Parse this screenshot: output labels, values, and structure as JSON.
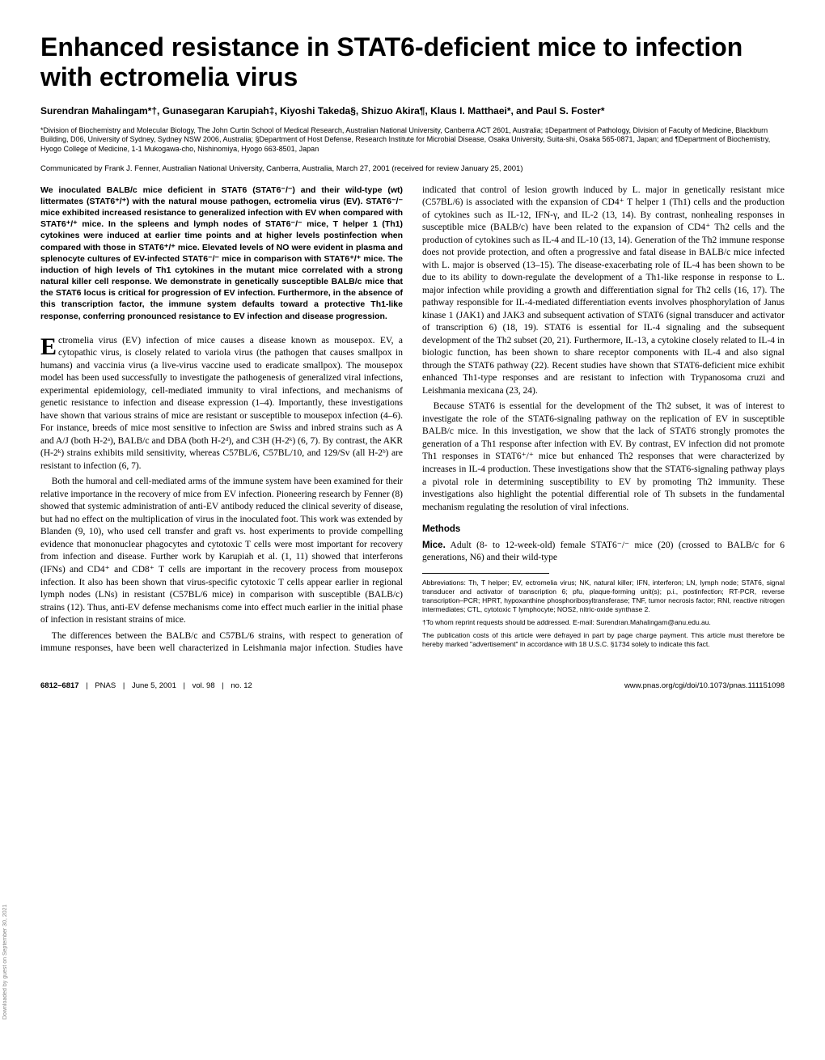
{
  "title": "Enhanced resistance in STAT6-deficient mice to infection with ectromelia virus",
  "authors": "Surendran Mahalingam*†, Gunasegaran Karupiah‡, Kiyoshi Takeda§, Shizuo Akira¶, Klaus I. Matthaei*, and Paul S. Foster*",
  "affiliations": "*Division of Biochemistry and Molecular Biology, The John Curtin School of Medical Research, Australian National University, Canberra ACT 2601, Australia; ‡Department of Pathology, Division of Faculty of Medicine, Blackburn Building, D06, University of Sydney, Sydney NSW 2006, Australia; §Department of Host Defense, Research Institute for Microbial Disease, Osaka University, Suita-shi, Osaka 565-0871, Japan; and ¶Department of Biochemistry, Hyogo College of Medicine, 1-1 Mukogawa-cho, Nishinomiya, Hyogo 663-8501, Japan",
  "communicated": "Communicated by Frank J. Fenner, Australian National University, Canberra, Australia, March 27, 2001 (received for review January 25, 2001)",
  "abstract": "We inoculated BALB/c mice deficient in STAT6 (STAT6⁻/⁻) and their wild-type (wt) littermates (STAT6⁺/⁺) with the natural mouse pathogen, ectromelia virus (EV). STAT6⁻/⁻ mice exhibited increased resistance to generalized infection with EV when compared with STAT6⁺/⁺ mice. In the spleens and lymph nodes of STAT6⁻/⁻ mice, T helper 1 (Th1) cytokines were induced at earlier time points and at higher levels postinfection when compared with those in STAT6⁺/⁺ mice. Elevated levels of NO were evident in plasma and splenocyte cultures of EV-infected STAT6⁻/⁻ mice in comparison with STAT6⁺/⁺ mice. The induction of high levels of Th1 cytokines in the mutant mice correlated with a strong natural killer cell response. We demonstrate in genetically susceptible BALB/c mice that the STAT6 locus is critical for progression of EV infection. Furthermore, in the absence of this transcription factor, the immune system defaults toward a protective Th1-like response, conferring pronounced resistance to EV infection and disease progression.",
  "para1_rest": "ctromelia virus (EV) infection of mice causes a disease known as mousepox. EV, a cytopathic virus, is closely related to variola virus (the pathogen that causes smallpox in humans) and vaccinia virus (a live-virus vaccine used to eradicate smallpox). The mousepox model has been used successfully to investigate the pathogenesis of generalized viral infections, experimental epidemiology, cell-mediated immunity to viral infections, and mechanisms of genetic resistance to infection and disease expression (1–4). Importantly, these investigations have shown that various strains of mice are resistant or susceptible to mousepox infection (4–6). For instance, breeds of mice most sensitive to infection are Swiss and inbred strains such as A and A/J (both H-2ᵃ), BALB/c and DBA (both H-2ᵈ), and C3H (H-2ᵏ) (6, 7). By contrast, the AKR (H-2ᵏ) strains exhibits mild sensitivity, whereas C57BL/6, C57BL/10, and 129/Sv (all H-2ᵇ) are resistant to infection (6, 7).",
  "para2": "Both the humoral and cell-mediated arms of the immune system have been examined for their relative importance in the recovery of mice from EV infection. Pioneering research by Fenner (8) showed that systemic administration of anti-EV antibody reduced the clinical severity of disease, but had no effect on the multiplication of virus in the inoculated foot. This work was extended by Blanden (9, 10), who used cell transfer and graft vs. host experiments to provide compelling evidence that mononuclear phagocytes and cytotoxic T cells were most important for recovery from infection and disease. Further work by Karupiah et al. (1, 11) showed that interferons (IFNs) and CD4⁺ and CD8⁺ T cells are important in the recovery process from mousepox infection. It also has been shown that virus-specific cytotoxic T cells appear earlier in regional lymph nodes (LNs) in resistant (C57BL/6 mice) in comparison with susceptible (BALB/c) strains (12). Thus, anti-EV defense mechanisms come into effect much earlier in the initial phase of infection in resistant strains of mice.",
  "para3": "The differences between the BALB/c and C57BL/6 strains, with respect to generation of immune responses, have been well characterized in Leishmania major infection. Studies have indicated that control of lesion growth induced by L. major in genetically resistant mice (C57BL/6) is associated with the expansion of CD4⁺ T helper 1 (Th1) cells and the production of cytokines such as IL-12, IFN-γ, and IL-2 (13, 14). By contrast, nonhealing responses in susceptible mice (BALB/c) have been related to the expansion of CD4⁺ Th2 cells and the production of cytokines such as IL-4 and IL-10 (13, 14). Generation of the Th2 immune response does not provide protection, and often a progressive and fatal disease in BALB/c mice infected with L. major is observed (13–15). The disease-exacerbating role of IL-4 has been shown to be due to its ability to down-regulate the development of a Th1-like response in response to L. major infection while providing a growth and differentiation signal for Th2 cells (16, 17). The pathway responsible for IL-4-mediated differentiation events involves phosphorylation of Janus kinase 1 (JAK1) and JAK3 and subsequent activation of STAT6 (signal transducer and activator of transcription 6) (18, 19). STAT6 is essential for IL-4 signaling and the subsequent development of the Th2 subset (20, 21). Furthermore, IL-13, a cytokine closely related to IL-4 in biologic function, has been shown to share receptor components with IL-4 and also signal through the STAT6 pathway (22). Recent studies have shown that STAT6-deficient mice exhibit enhanced Th1-type responses and are resistant to infection with Trypanosoma cruzi and Leishmania mexicana (23, 24).",
  "para4": "Because STAT6 is essential for the development of the Th2 subset, it was of interest to investigate the role of the STAT6-signaling pathway on the replication of EV in susceptible BALB/c mice. In this investigation, we show that the lack of STAT6 strongly promotes the generation of a Th1 response after infection with EV. By contrast, EV infection did not promote Th1 responses in STAT6⁺/⁺ mice but enhanced Th2 responses that were characterized by increases in IL-4 production. These investigations show that the STAT6-signaling pathway plays a pivotal role in determining susceptibility to EV by promoting Th2 immunity. These investigations also highlight the potential differential role of Th subsets in the fundamental mechanism regulating the resolution of viral infections.",
  "methods_heading": "Methods",
  "mice_lead": "Mice.",
  "mice_text": " Adult (8- to 12-week-old) female STAT6⁻/⁻ mice (20) (crossed to BALB/c for 6 generations, N6) and their wild-type",
  "abbreviations": "Abbreviations: Th, T helper; EV, ectromelia virus; NK, natural killer; IFN, interferon; LN, lymph node; STAT6, signal transducer and activator of transcription 6; pfu, plaque-forming unit(s); p.i., postinfection; RT-PCR, reverse transcription–PCR; HPRT, hypoxanthine phosphoribosyltransferase; TNF, tumor necrosis factor; RNI, reactive nitrogen intermediates; CTL, cytotoxic T lymphocyte; NOS2, nitric-oxide synthase 2.",
  "correspondence": "†To whom reprint requests should be addressed. E-mail: Surendran.Mahalingam@anu.edu.au.",
  "publication_note": "The publication costs of this article were defrayed in part by page charge payment. This article must therefore be hereby marked \"advertisement\" in accordance with 18 U.S.C. §1734 solely to indicate this fact.",
  "footer": {
    "pages": "6812–6817",
    "journal": "PNAS",
    "date": "June 5, 2001",
    "vol": "vol. 98",
    "issue": "no. 12",
    "doi": "www.pnas.org/cgi/doi/10.1073/pnas.111151098"
  },
  "sidebar": "Downloaded by guest on September 30, 2021"
}
